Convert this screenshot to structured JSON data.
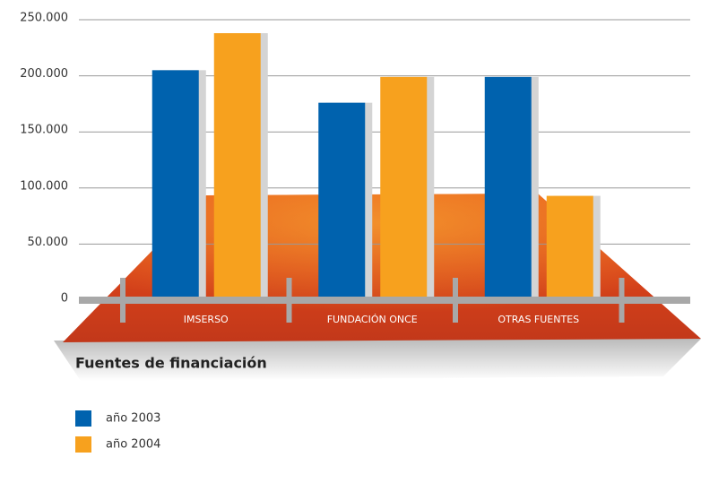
{
  "chart_data": {
    "type": "bar",
    "title": "Fuentes de financiación",
    "categories": [
      "IMSERSO",
      "FUNDACIÓN ONCE",
      "OTRAS FUENTES"
    ],
    "series": [
      {
        "name": "año 2003",
        "color": "#0062ae",
        "values": [
          205000,
          176000,
          199000
        ]
      },
      {
        "name": "año 2004",
        "color": "#f7a11e",
        "values": [
          238000,
          199000,
          93000
        ]
      }
    ],
    "ylim": [
      0,
      250000
    ],
    "yticks": [
      0,
      {
        "value": 50000,
        "label": "50.000"
      },
      {
        "value": 100000,
        "label": "100.000"
      },
      {
        "value": 150000,
        "label": "150.000"
      },
      {
        "value": 200000,
        "label": "200.000"
      },
      {
        "value": 250000,
        "label": "250.000"
      }
    ],
    "grid": true
  }
}
